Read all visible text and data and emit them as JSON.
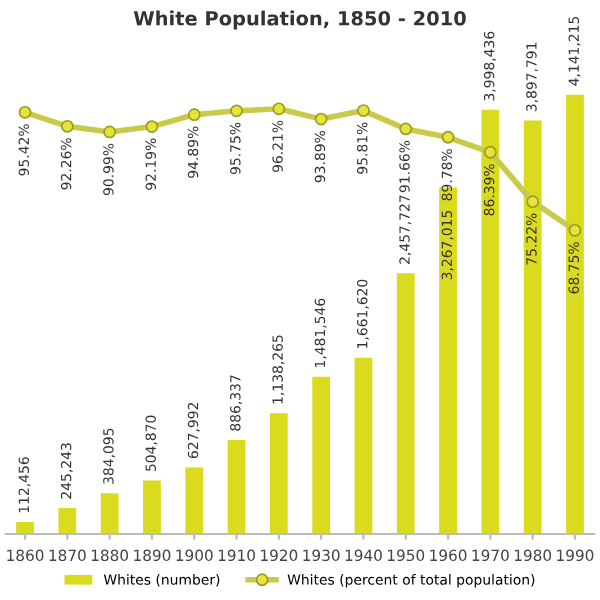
{
  "chart_data": {
    "type": "bar",
    "title": "White Population, 1850 - 2010",
    "categories": [
      "1860",
      "1870",
      "1880",
      "1890",
      "1900",
      "1910",
      "1920",
      "1930",
      "1940",
      "1950",
      "1960",
      "1970",
      "1980",
      "1990"
    ],
    "series": [
      {
        "name": "Whites (number)",
        "color": "#dada1e",
        "values": [
          112456,
          245243,
          384095,
          504870,
          627992,
          886337,
          1138265,
          1481546,
          1661620,
          2457727,
          3267015,
          3998436,
          3897791,
          4141215
        ],
        "value_labels": [
          "112,456",
          "245,243",
          "384,095",
          "504,870",
          "627,992",
          "886,337",
          "1,138,265",
          "1,481,546",
          "1,661,620",
          "2,457,727",
          "3,267,015",
          "3,998,436",
          "3,897,791",
          "4,141,215"
        ]
      },
      {
        "name": "Whites (percent of total population)",
        "type": "line",
        "axis": "y2",
        "color": "#c9c94a",
        "marker": "circle",
        "values": [
          95.42,
          92.26,
          90.99,
          92.19,
          94.89,
          95.75,
          96.21,
          93.89,
          95.81,
          91.66,
          89.78,
          86.39,
          75.22,
          68.75
        ],
        "value_labels": [
          "95.42%",
          "92.26%",
          "90.99%",
          "92.19%",
          "94.89%",
          "95.75%",
          "96.21%",
          "93.89%",
          "95.81%",
          "91.66%",
          "89.78%",
          "86.39%",
          "75.22%",
          "68.75%"
        ]
      }
    ],
    "legend": "bottom"
  }
}
